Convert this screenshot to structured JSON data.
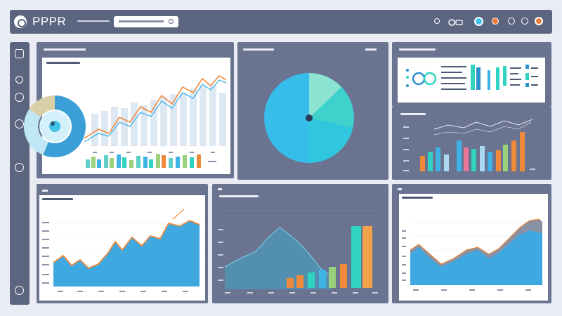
{
  "header": {
    "app_title": "PPPR"
  },
  "theme": {
    "accent": "#3fb2e6",
    "orange": "#ef8a3c",
    "teal": "#2fd3c0",
    "panel": "#6a7390",
    "nav": "#5c6580"
  },
  "icons": {
    "header": [
      "logo-icon",
      "search-icon",
      "refresh-icon",
      "grid-icon",
      "bell-icon",
      "settings-icon",
      "user-icon"
    ],
    "sidebar": [
      "home-icon",
      "clock-icon",
      "refresh-icon",
      "settings-icon",
      "power-icon"
    ]
  }
}
